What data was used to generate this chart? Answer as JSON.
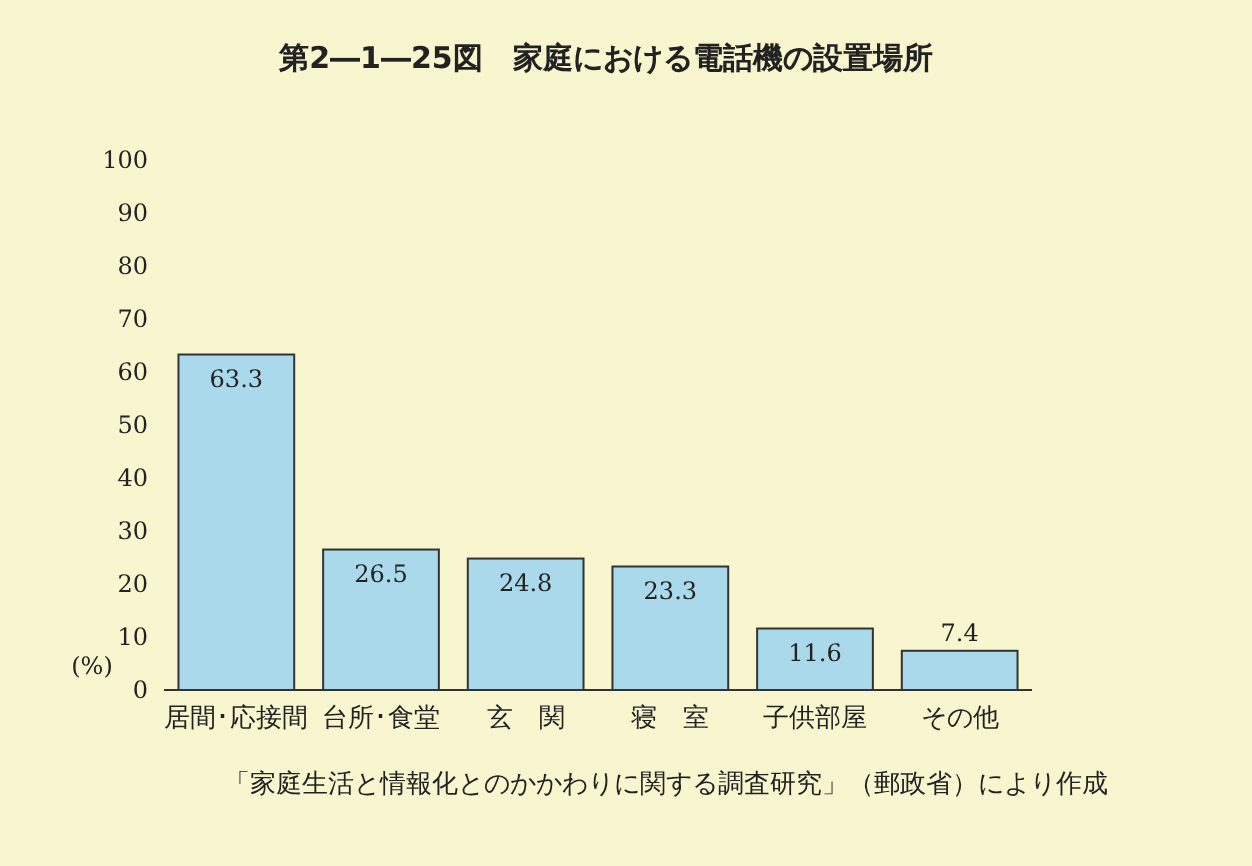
{
  "chart_data": {
    "type": "bar",
    "title": "第2―1―25図　家庭における電話機の設置場所",
    "categories": [
      "居間･応接間",
      "台所･食堂",
      "玄　関",
      "寝　室",
      "子供部屋",
      "その他"
    ],
    "values": [
      63.3,
      26.5,
      24.8,
      23.3,
      11.6,
      7.4
    ],
    "color": "#a9d9ea",
    "ylabel": "(%)",
    "ylim": [
      0,
      100
    ],
    "yticks": [
      0,
      10,
      20,
      30,
      40,
      50,
      60,
      70,
      80,
      90,
      100
    ],
    "data_labels": true,
    "annotations": [
      "「家庭生活と情報化とのかかわりに関する調査研究」（郵政省）により作成"
    ]
  }
}
